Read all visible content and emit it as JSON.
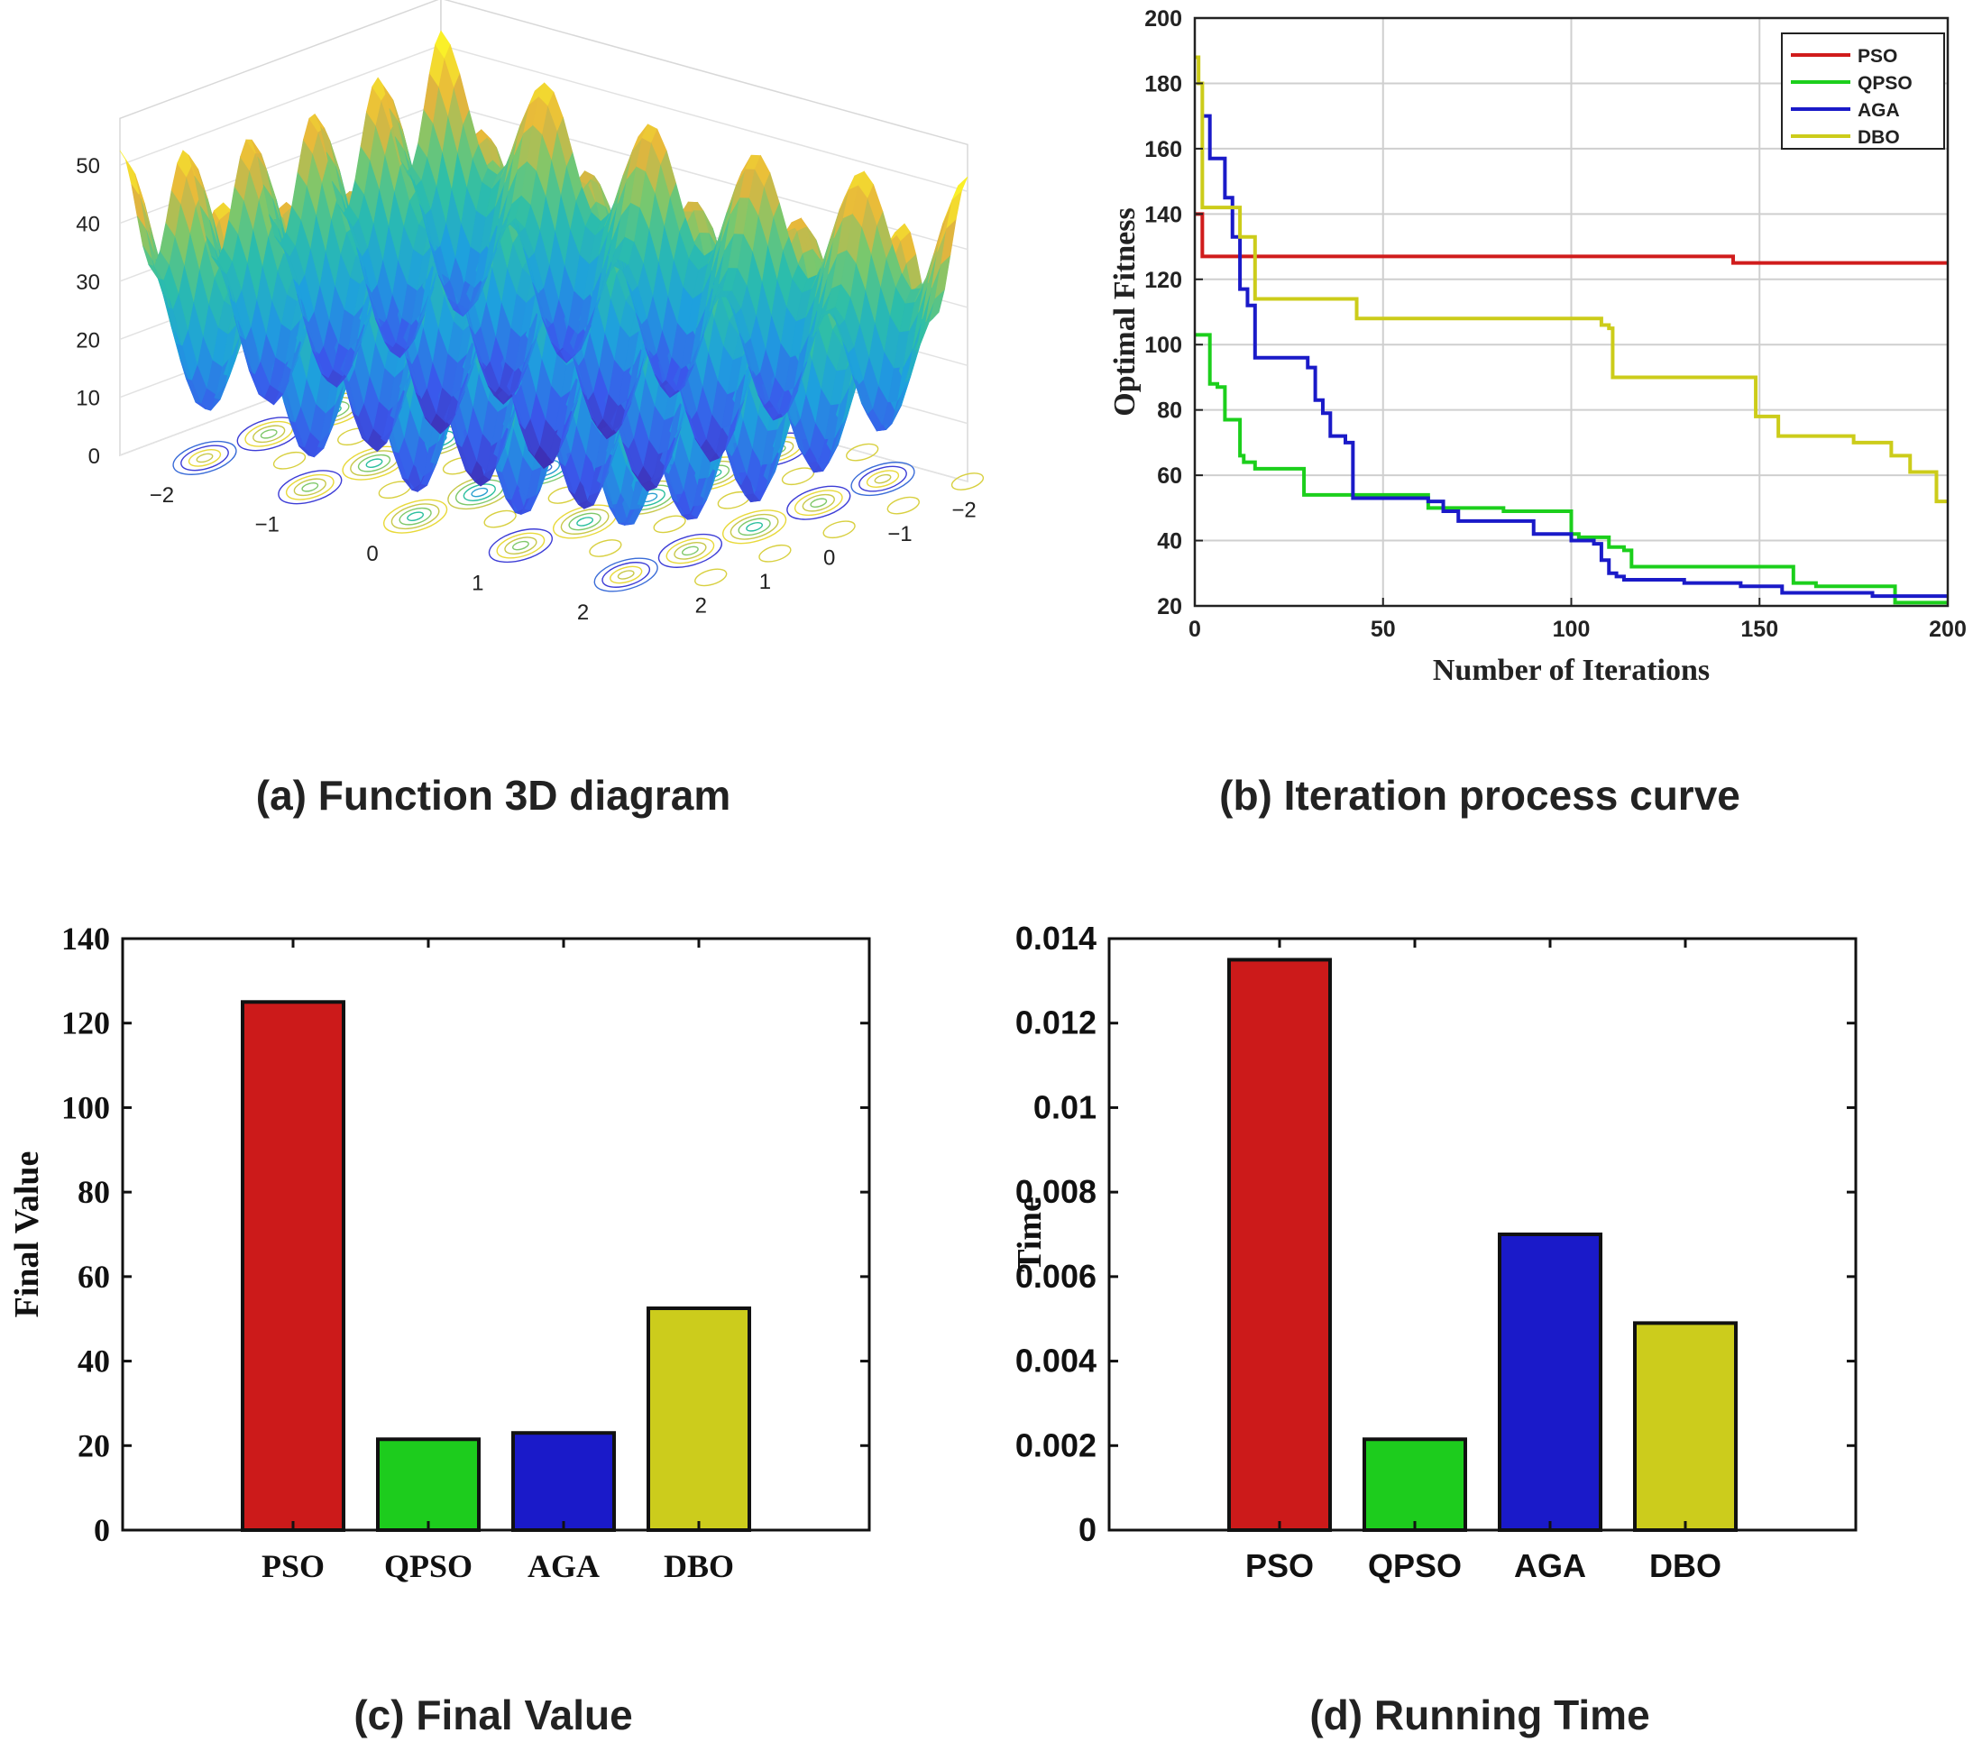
{
  "captions": {
    "a": "(a) Function 3D diagram",
    "b": "(b) Iteration process curve",
    "c": "(c) Final Value",
    "d": "(d) Running Time"
  },
  "colors": {
    "PSO": "#d01c1c",
    "QPSO": "#1ccf1c",
    "AGA": "#1a1ac8",
    "DBO": "#cccc1a",
    "bar_PSO": "#cc1a1a",
    "bar_QPSO": "#1dcc1d",
    "bar_AGA": "#1a1ac9",
    "bar_DBO": "#cccc1c"
  },
  "chart_data": [
    {
      "id": "a",
      "type": "surface3d",
      "zticks": [
        "0",
        "10",
        "20",
        "30",
        "40",
        "50"
      ],
      "xticks": [
        "−2",
        "−1",
        "0",
        "1",
        "2"
      ],
      "yticks": [
        "−2",
        "−1",
        "0",
        "1",
        "2"
      ],
      "zlim": [
        0,
        50
      ],
      "xlim": [
        -2.5,
        2.5
      ],
      "ylim": [
        -2.5,
        2.5
      ]
    },
    {
      "id": "b",
      "type": "line",
      "xlabel": "Number of Iterations",
      "ylabel": "Optimal Fitness",
      "xlim": [
        0,
        200
      ],
      "ylim": [
        20,
        200
      ],
      "xticks": [
        0,
        50,
        100,
        150,
        200
      ],
      "yticks": [
        20,
        40,
        60,
        80,
        100,
        120,
        140,
        160,
        180,
        200
      ],
      "grid": true,
      "legend_position": "top-right",
      "series": [
        {
          "name": "PSO",
          "x": [
            0,
            2,
            2,
            142,
            143,
            200
          ],
          "y": [
            140,
            140,
            127,
            127,
            125,
            125
          ]
        },
        {
          "name": "QPSO",
          "x": [
            0,
            3,
            4,
            6,
            8,
            9,
            12,
            13,
            16,
            28,
            29,
            60,
            62,
            80,
            82,
            100,
            102,
            108,
            110,
            114,
            116,
            140,
            158,
            159,
            165,
            185,
            186,
            200
          ],
          "y": [
            103,
            103,
            88,
            87,
            77,
            77,
            66,
            64,
            62,
            62,
            54,
            54,
            50,
            50,
            49,
            42,
            41,
            41,
            38,
            37,
            32,
            32,
            32,
            27,
            26,
            26,
            21,
            21
          ]
        },
        {
          "name": "AGA",
          "x": [
            2,
            3,
            4,
            8,
            10,
            12,
            14,
            16,
            28,
            30,
            32,
            34,
            36,
            40,
            42,
            58,
            62,
            66,
            70,
            88,
            90,
            100,
            104,
            106,
            108,
            110,
            112,
            114,
            120,
            130,
            145,
            155,
            156,
            175,
            180,
            200
          ],
          "y": [
            170,
            170,
            157,
            145,
            133,
            117,
            112,
            96,
            96,
            93,
            83,
            79,
            72,
            70,
            53,
            53,
            52,
            49,
            46,
            46,
            42,
            40,
            40,
            39,
            34,
            30,
            29,
            28,
            28,
            27,
            26,
            26,
            24,
            24,
            23,
            23
          ]
        },
        {
          "name": "DBO",
          "x": [
            0,
            1,
            2,
            6,
            8,
            12,
            14,
            16,
            42,
            43,
            60,
            106,
            108,
            110,
            111,
            148,
            149,
            154,
            155,
            165,
            175,
            185,
            190,
            196,
            197,
            200
          ],
          "y": [
            188,
            180,
            142,
            142,
            142,
            133,
            133,
            114,
            114,
            108,
            108,
            108,
            106,
            105,
            90,
            90,
            78,
            78,
            72,
            72,
            70,
            66,
            61,
            61,
            52,
            52
          ]
        }
      ]
    },
    {
      "id": "c",
      "type": "bar",
      "ylabel": "Final Value",
      "categories": [
        "PSO",
        "QPSO",
        "AGA",
        "DBO"
      ],
      "values": [
        125,
        21.5,
        23,
        52.5
      ],
      "ylim": [
        0,
        140
      ],
      "yticks": [
        "0",
        "20",
        "40",
        "60",
        "80",
        "100",
        "120",
        "140"
      ]
    },
    {
      "id": "d",
      "type": "bar",
      "ylabel": "Time",
      "categories": [
        "PSO",
        "QPSO",
        "AGA",
        "DBO"
      ],
      "values": [
        0.0135,
        0.00215,
        0.007,
        0.0049
      ],
      "ylim": [
        0,
        0.014
      ],
      "yticks": [
        "0",
        "0.002",
        "0.004",
        "0.006",
        "0.008",
        "0.01",
        "0.012",
        "0.014"
      ]
    }
  ]
}
